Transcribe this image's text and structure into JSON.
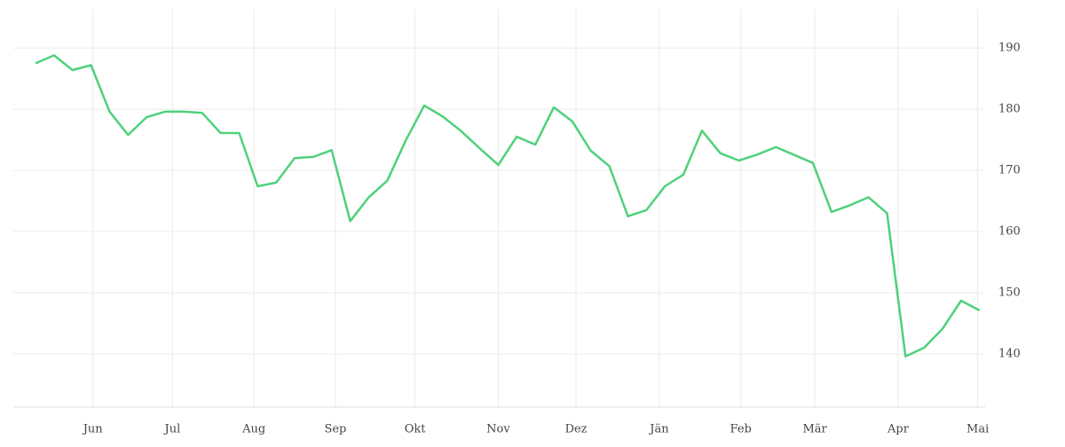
{
  "chart_data": {
    "type": "line",
    "x": [
      0,
      1,
      2,
      3,
      4,
      5,
      6,
      7,
      8,
      9,
      10,
      11,
      12,
      13,
      14,
      15,
      16,
      17,
      18,
      19,
      20,
      21,
      22,
      23,
      24,
      25,
      26,
      27,
      28,
      29,
      30,
      31,
      32,
      33,
      34,
      35,
      36,
      37,
      38,
      39,
      40,
      41,
      42,
      43,
      44,
      45,
      46,
      47,
      48,
      49,
      50,
      51
    ],
    "series": [
      {
        "color": "#4fd17c",
        "values": [
          187.5,
          188.8,
          186.4,
          187.2,
          179.6,
          175.8,
          178.7,
          179.6,
          179.6,
          179.4,
          176.1,
          176.1,
          167.4,
          168.0,
          172.0,
          172.2,
          173.3,
          161.7,
          165.6,
          168.3,
          174.9,
          180.6,
          178.8,
          176.4,
          173.6,
          170.9,
          175.5,
          174.2,
          180.3,
          178.0,
          173.2,
          170.7,
          162.5,
          163.5,
          167.4,
          169.3,
          176.5,
          172.8,
          171.6,
          172.6,
          173.8,
          172.5,
          171.2,
          163.2,
          164.3,
          165.6,
          163.0,
          139.6,
          141.0,
          144.1,
          148.7,
          147.1
        ]
      }
    ],
    "xlim": [
      -1.2,
      51.3
    ],
    "xticks": [
      {
        "value": 3.1,
        "label": "Jun"
      },
      {
        "value": 7.4,
        "label": "Jul"
      },
      {
        "value": 11.8,
        "label": "Aug"
      },
      {
        "value": 16.2,
        "label": "Sep"
      },
      {
        "value": 20.5,
        "label": "Okt"
      },
      {
        "value": 25.0,
        "label": "Nov"
      },
      {
        "value": 29.2,
        "label": "Dez"
      },
      {
        "value": 33.7,
        "label": "Jän"
      },
      {
        "value": 38.1,
        "label": "Feb"
      },
      {
        "value": 42.1,
        "label": "Mär"
      },
      {
        "value": 46.6,
        "label": "Apr"
      },
      {
        "value": 50.9,
        "label": "Mai"
      }
    ],
    "ylim": [
      131.3,
      196.4
    ],
    "yticks": [
      140,
      150,
      160,
      170,
      180,
      190
    ],
    "grid": true,
    "y_axis_side": "right"
  }
}
